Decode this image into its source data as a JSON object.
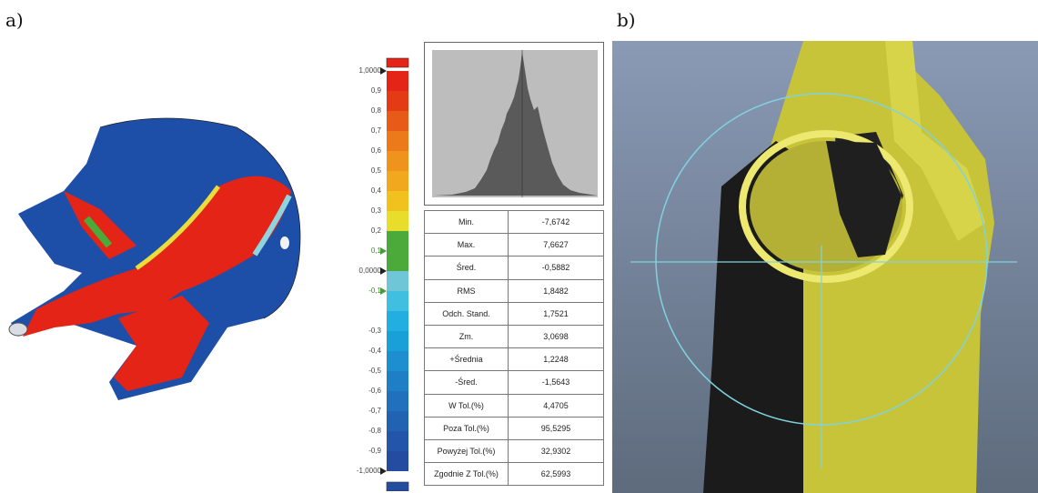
{
  "panel_a_label": "a)",
  "panel_b_label": "b)",
  "colors": {
    "red": "#e32416",
    "blue": "#1e4fa8",
    "green": "#4caa3a",
    "yellow": "#e8dd3a",
    "cyan": "#8fd5dd"
  },
  "scale_labels": [
    {
      "text": "1,0000",
      "arrow": true
    },
    {
      "text": "0,9"
    },
    {
      "text": "0,8"
    },
    {
      "text": "0,7"
    },
    {
      "text": "0,6"
    },
    {
      "text": "0,5"
    },
    {
      "text": "0,4"
    },
    {
      "text": "0,3"
    },
    {
      "text": "0,2"
    },
    {
      "text": "0,1",
      "arrow": true,
      "green": true
    },
    {
      "text": "0,0000",
      "arrow": true
    },
    {
      "text": "-0,1",
      "arrow": true,
      "green": true
    },
    {
      "text": "-0,3"
    },
    {
      "text": "-0,4"
    },
    {
      "text": "-0,5"
    },
    {
      "text": "-0,6"
    },
    {
      "text": "-0,7"
    },
    {
      "text": "-0,8"
    },
    {
      "text": "-0,9"
    },
    {
      "text": "-1,0000",
      "arrow": true
    }
  ],
  "stats": [
    {
      "label": "Min.",
      "value": "-7,6742"
    },
    {
      "label": "Max.",
      "value": "7,6627"
    },
    {
      "label": "Śred.",
      "value": "-0,5882"
    },
    {
      "label": "RMS",
      "value": "1,8482"
    },
    {
      "label": "Odch. Stand.",
      "value": "1,7521"
    },
    {
      "label": "Zm.",
      "value": "3,0698"
    },
    {
      "label": "+Średnia",
      "value": "1,2248"
    },
    {
      "label": "-Śred.",
      "value": "-1,5643"
    },
    {
      "label": "W Tol.(%)",
      "value": "4,4705"
    },
    {
      "label": "Poza Tol.(%)",
      "value": "95,5295"
    },
    {
      "label": "Powyżej Tol.(%)",
      "value": "32,9302"
    },
    {
      "label": "Zgodnie Z Tol.(%)",
      "value": "62,5993"
    }
  ]
}
